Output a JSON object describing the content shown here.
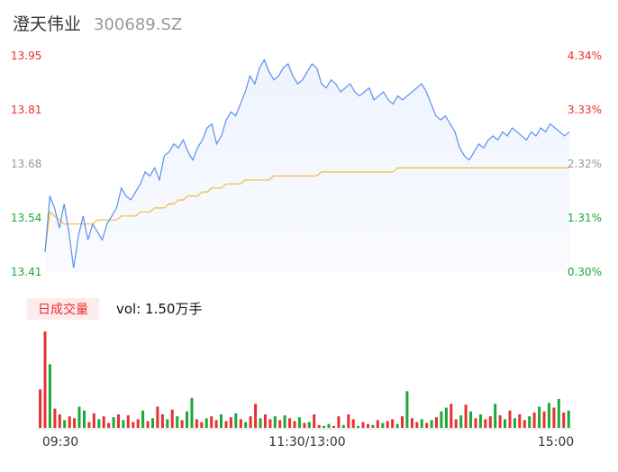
{
  "header": {
    "name": "澄天伟业",
    "code": "300689.SZ"
  },
  "colors": {
    "up": "#e93030",
    "down": "#1aa83a",
    "price": "#5b8ff0",
    "avg": "#f5b73a",
    "neutral": "#999999"
  },
  "chart_data": {
    "type": "line",
    "title": "",
    "price_axis": {
      "ticks": [
        "13.95",
        "13.81",
        "13.68",
        "13.54",
        "13.41"
      ],
      "range": [
        13.41,
        13.95
      ]
    },
    "pct_axis": {
      "ticks": [
        "4.34%",
        "3.33%",
        "2.32%",
        "1.31%",
        "0.30%"
      ]
    },
    "time_axis": {
      "ticks": [
        "09:30",
        "11:30/13:00",
        "15:00"
      ]
    },
    "series": [
      {
        "key": "price",
        "values": [
          13.46,
          13.6,
          13.57,
          13.52,
          13.58,
          13.51,
          13.42,
          13.5,
          13.55,
          13.49,
          13.53,
          13.51,
          13.49,
          13.53,
          13.55,
          13.57,
          13.62,
          13.6,
          13.59,
          13.61,
          13.63,
          13.66,
          13.65,
          13.67,
          13.64,
          13.7,
          13.71,
          13.73,
          13.72,
          13.74,
          13.71,
          13.69,
          13.72,
          13.74,
          13.77,
          13.78,
          13.73,
          13.75,
          13.79,
          13.81,
          13.8,
          13.83,
          13.86,
          13.9,
          13.88,
          13.92,
          13.94,
          13.91,
          13.89,
          13.9,
          13.92,
          13.93,
          13.9,
          13.88,
          13.89,
          13.91,
          13.93,
          13.92,
          13.88,
          13.87,
          13.89,
          13.88,
          13.86,
          13.87,
          13.88,
          13.86,
          13.85,
          13.86,
          13.87,
          13.84,
          13.85,
          13.86,
          13.84,
          13.83,
          13.85,
          13.84,
          13.85,
          13.86,
          13.87,
          13.88,
          13.86,
          13.83,
          13.8,
          13.79,
          13.8,
          13.78,
          13.76,
          13.72,
          13.7,
          13.69,
          13.71,
          13.73,
          13.72,
          13.74,
          13.75,
          13.74,
          13.76,
          13.75,
          13.77,
          13.76,
          13.75,
          13.74,
          13.76,
          13.75,
          13.77,
          13.76,
          13.78,
          13.77,
          13.76,
          13.75,
          13.76
        ]
      },
      {
        "key": "avg",
        "values": [
          13.46,
          13.56,
          13.55,
          13.54,
          13.53,
          13.53,
          13.53,
          13.53,
          13.53,
          13.53,
          13.53,
          13.54,
          13.54,
          13.54,
          13.54,
          13.54,
          13.55,
          13.55,
          13.55,
          13.55,
          13.56,
          13.56,
          13.56,
          13.57,
          13.57,
          13.57,
          13.58,
          13.58,
          13.59,
          13.59,
          13.6,
          13.6,
          13.6,
          13.61,
          13.61,
          13.62,
          13.62,
          13.62,
          13.63,
          13.63,
          13.63,
          13.63,
          13.64,
          13.64,
          13.64,
          13.64,
          13.64,
          13.64,
          13.65,
          13.65,
          13.65,
          13.65,
          13.65,
          13.65,
          13.65,
          13.65,
          13.65,
          13.65,
          13.66,
          13.66,
          13.66,
          13.66,
          13.66,
          13.66,
          13.66,
          13.66,
          13.66,
          13.66,
          13.66,
          13.66,
          13.66,
          13.66,
          13.66,
          13.66,
          13.67,
          13.67,
          13.67,
          13.67,
          13.67,
          13.67,
          13.67,
          13.67,
          13.67,
          13.67,
          13.67,
          13.67,
          13.67,
          13.67,
          13.67,
          13.67,
          13.67,
          13.67,
          13.67,
          13.67,
          13.67,
          13.67,
          13.67,
          13.67,
          13.67,
          13.67,
          13.67,
          13.67,
          13.67,
          13.67,
          13.67,
          13.67,
          13.67,
          13.67,
          13.67,
          13.67,
          13.67
        ]
      }
    ],
    "volume": {
      "label": "日成交量",
      "summary": "vol: 1.50万手",
      "bars": [
        {
          "v": 40,
          "up": 1
        },
        {
          "v": 100,
          "up": 1
        },
        {
          "v": 66,
          "up": 0
        },
        {
          "v": 20,
          "up": 1
        },
        {
          "v": 14,
          "up": 1
        },
        {
          "v": 8,
          "up": 0
        },
        {
          "v": 12,
          "up": 1
        },
        {
          "v": 10,
          "up": 1
        },
        {
          "v": 22,
          "up": 0
        },
        {
          "v": 18,
          "up": 0
        },
        {
          "v": 6,
          "up": 1
        },
        {
          "v": 15,
          "up": 1
        },
        {
          "v": 9,
          "up": 0
        },
        {
          "v": 12,
          "up": 1
        },
        {
          "v": 5,
          "up": 1
        },
        {
          "v": 11,
          "up": 0
        },
        {
          "v": 14,
          "up": 1
        },
        {
          "v": 8,
          "up": 0
        },
        {
          "v": 13,
          "up": 1
        },
        {
          "v": 6,
          "up": 1
        },
        {
          "v": 9,
          "up": 1
        },
        {
          "v": 18,
          "up": 0
        },
        {
          "v": 7,
          "up": 1
        },
        {
          "v": 10,
          "up": 0
        },
        {
          "v": 22,
          "up": 1
        },
        {
          "v": 14,
          "up": 1
        },
        {
          "v": 9,
          "up": 0
        },
        {
          "v": 19,
          "up": 1
        },
        {
          "v": 12,
          "up": 0
        },
        {
          "v": 8,
          "up": 1
        },
        {
          "v": 17,
          "up": 0
        },
        {
          "v": 31,
          "up": 0
        },
        {
          "v": 9,
          "up": 1
        },
        {
          "v": 6,
          "up": 1
        },
        {
          "v": 10,
          "up": 0
        },
        {
          "v": 12,
          "up": 1
        },
        {
          "v": 8,
          "up": 1
        },
        {
          "v": 14,
          "up": 0
        },
        {
          "v": 7,
          "up": 1
        },
        {
          "v": 11,
          "up": 1
        },
        {
          "v": 15,
          "up": 0
        },
        {
          "v": 9,
          "up": 1
        },
        {
          "v": 6,
          "up": 0
        },
        {
          "v": 12,
          "up": 1
        },
        {
          "v": 25,
          "up": 1
        },
        {
          "v": 10,
          "up": 0
        },
        {
          "v": 14,
          "up": 1
        },
        {
          "v": 9,
          "up": 1
        },
        {
          "v": 12,
          "up": 0
        },
        {
          "v": 8,
          "up": 1
        },
        {
          "v": 13,
          "up": 0
        },
        {
          "v": 10,
          "up": 1
        },
        {
          "v": 7,
          "up": 1
        },
        {
          "v": 11,
          "up": 0
        },
        {
          "v": 5,
          "up": 1
        },
        {
          "v": 6,
          "up": 0
        },
        {
          "v": 14,
          "up": 1
        },
        {
          "v": 3,
          "up": 1
        },
        {
          "v": 2,
          "up": 0
        },
        {
          "v": 4,
          "up": 0
        },
        {
          "v": 2,
          "up": 1
        },
        {
          "v": 12,
          "up": 1
        },
        {
          "v": 3,
          "up": 0
        },
        {
          "v": 14,
          "up": 1
        },
        {
          "v": 9,
          "up": 1
        },
        {
          "v": 2,
          "up": 0
        },
        {
          "v": 6,
          "up": 1
        },
        {
          "v": 4,
          "up": 1
        },
        {
          "v": 3,
          "up": 0
        },
        {
          "v": 8,
          "up": 1
        },
        {
          "v": 5,
          "up": 0
        },
        {
          "v": 7,
          "up": 1
        },
        {
          "v": 9,
          "up": 1
        },
        {
          "v": 4,
          "up": 0
        },
        {
          "v": 12,
          "up": 1
        },
        {
          "v": 38,
          "up": 0
        },
        {
          "v": 10,
          "up": 1
        },
        {
          "v": 6,
          "up": 1
        },
        {
          "v": 9,
          "up": 0
        },
        {
          "v": 5,
          "up": 1
        },
        {
          "v": 8,
          "up": 0
        },
        {
          "v": 11,
          "up": 1
        },
        {
          "v": 17,
          "up": 0
        },
        {
          "v": 21,
          "up": 0
        },
        {
          "v": 25,
          "up": 1
        },
        {
          "v": 9,
          "up": 1
        },
        {
          "v": 13,
          "up": 0
        },
        {
          "v": 24,
          "up": 1
        },
        {
          "v": 17,
          "up": 0
        },
        {
          "v": 10,
          "up": 1
        },
        {
          "v": 14,
          "up": 0
        },
        {
          "v": 9,
          "up": 1
        },
        {
          "v": 12,
          "up": 1
        },
        {
          "v": 25,
          "up": 0
        },
        {
          "v": 13,
          "up": 1
        },
        {
          "v": 9,
          "up": 0
        },
        {
          "v": 18,
          "up": 1
        },
        {
          "v": 10,
          "up": 0
        },
        {
          "v": 14,
          "up": 1
        },
        {
          "v": 8,
          "up": 1
        },
        {
          "v": 12,
          "up": 0
        },
        {
          "v": 16,
          "up": 1
        },
        {
          "v": 22,
          "up": 0
        },
        {
          "v": 17,
          "up": 1
        },
        {
          "v": 26,
          "up": 0
        },
        {
          "v": 21,
          "up": 1
        },
        {
          "v": 30,
          "up": 0
        },
        {
          "v": 16,
          "up": 1
        },
        {
          "v": 18,
          "up": 0
        }
      ]
    }
  }
}
